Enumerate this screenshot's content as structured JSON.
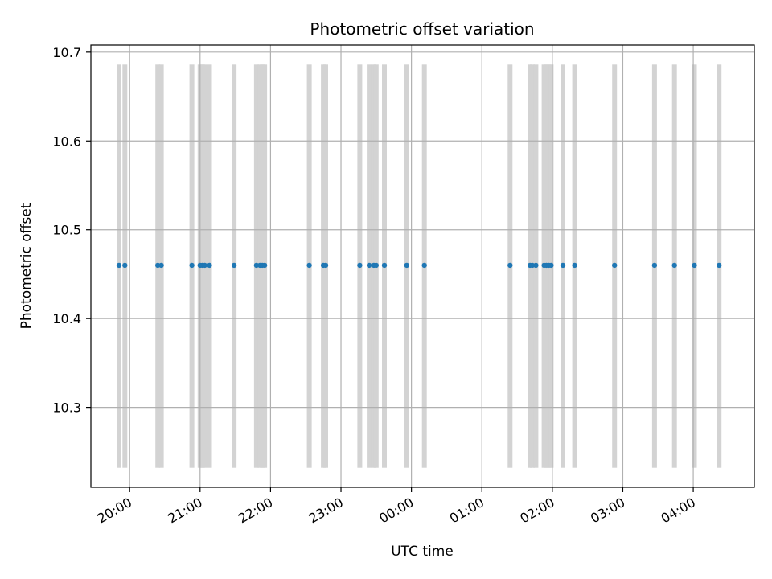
{
  "chart_data": {
    "type": "scatter",
    "title": "Photometric offset variation",
    "xlabel": "UTC time",
    "ylabel": "Photometric offset",
    "grid": true,
    "xlim": [
      "19:27",
      "04:52"
    ],
    "ylim": [
      10.21,
      10.708
    ],
    "x_ticks": [
      "20:00",
      "21:00",
      "22:00",
      "23:00",
      "00:00",
      "01:00",
      "02:00",
      "03:00",
      "04:00"
    ],
    "y_ticks": [
      "10.3",
      "10.4",
      "10.5",
      "10.6",
      "10.7"
    ],
    "band_range": [
      10.232,
      10.686
    ],
    "colors": {
      "points": "#1f77b4",
      "bands": "#d3d3d3",
      "grid": "#b0b0b0"
    },
    "series": [
      {
        "values": [
          [
            "19:51",
            10.46
          ],
          [
            "19:56",
            10.46
          ],
          [
            "20:24",
            10.46
          ],
          [
            "20:27",
            10.46
          ],
          [
            "20:53",
            10.46
          ],
          [
            "21:00",
            10.46
          ],
          [
            "21:02",
            10.46
          ],
          [
            "21:04",
            10.46
          ],
          [
            "21:08",
            10.46
          ],
          [
            "21:29",
            10.46
          ],
          [
            "21:48",
            10.46
          ],
          [
            "21:51",
            10.46
          ],
          [
            "21:53",
            10.46
          ],
          [
            "21:55",
            10.46
          ],
          [
            "22:33",
            10.46
          ],
          [
            "22:45",
            10.46
          ],
          [
            "22:47",
            10.46
          ],
          [
            "23:16",
            10.46
          ],
          [
            "23:24",
            10.46
          ],
          [
            "23:28",
            10.46
          ],
          [
            "23:30",
            10.46
          ],
          [
            "23:37",
            10.46
          ],
          [
            "23:56",
            10.46
          ],
          [
            "00:11",
            10.46
          ],
          [
            "01:24",
            10.46
          ],
          [
            "01:41",
            10.46
          ],
          [
            "01:43",
            10.46
          ],
          [
            "01:46",
            10.46
          ],
          [
            "01:53",
            10.46
          ],
          [
            "01:55",
            10.46
          ],
          [
            "01:57",
            10.46
          ],
          [
            "01:59",
            10.46
          ],
          [
            "02:09",
            10.46
          ],
          [
            "02:19",
            10.46
          ],
          [
            "02:53",
            10.46
          ],
          [
            "03:27",
            10.46
          ],
          [
            "03:44",
            10.46
          ],
          [
            "04:01",
            10.46
          ],
          [
            "04:22",
            10.46
          ]
        ]
      }
    ]
  }
}
